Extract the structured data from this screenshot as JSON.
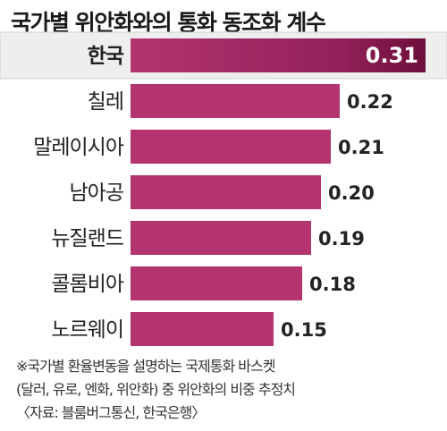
{
  "chart_data": {
    "type": "bar",
    "orientation": "horizontal",
    "title": "국가별 위안화와의 통화 동조화 계수",
    "categories": [
      "한국",
      "칠레",
      "말레이시아",
      "남아공",
      "뉴질랜드",
      "콜롬비아",
      "노르웨이"
    ],
    "value_labels": [
      "0.31",
      "0.22",
      "0.21",
      "0.20",
      "0.19",
      "0.18",
      "0.15"
    ],
    "values": [
      0.31,
      0.22,
      0.21,
      0.2,
      0.19,
      0.18,
      0.15
    ],
    "highlight_index": 0,
    "xlim": [
      0,
      0.31
    ],
    "colors": {
      "bar": "#b3346f",
      "highlight_bar_dark": "#6e0f3b",
      "highlight_row_bg": "#eeeeee"
    }
  },
  "notes": [
    "※국가별 환율변동을 설명하는 국제통화 바스켓",
    "(달러, 유로, 엔화, 위안화) 중 위안화의 비중 추정치",
    "〈자료: 블룸버그통신, 한국은행〉"
  ]
}
